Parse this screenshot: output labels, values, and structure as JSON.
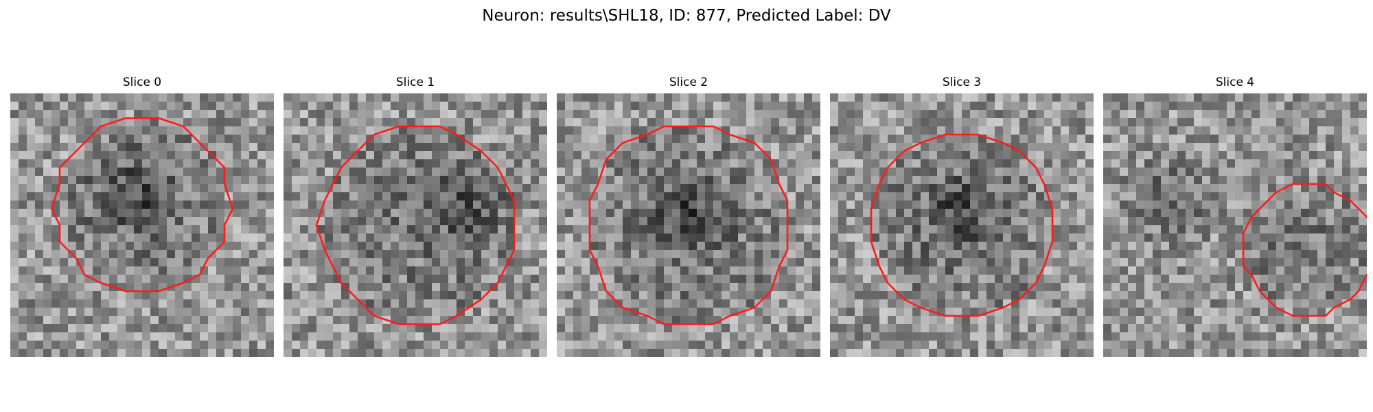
{
  "figure": {
    "title": "Neuron: results\\SHL18, ID: 877, Predicted Label: DV"
  },
  "slices": [
    {
      "label": "Slice 0",
      "contour_center": [
        0.5,
        0.43
      ],
      "contour_radius": 0.33,
      "dark_spot": [
        0.46,
        0.38
      ],
      "background_seed": 11
    },
    {
      "label": "Slice 1",
      "contour_center": [
        0.51,
        0.5
      ],
      "contour_radius": 0.37,
      "dark_spot": [
        0.7,
        0.42
      ],
      "background_seed": 23
    },
    {
      "label": "Slice 2",
      "contour_center": [
        0.5,
        0.5
      ],
      "contour_radius": 0.38,
      "dark_spot": [
        0.5,
        0.45
      ],
      "background_seed": 37
    },
    {
      "label": "Slice 3",
      "contour_center": [
        0.5,
        0.5
      ],
      "contour_radius": 0.34,
      "dark_spot": [
        0.5,
        0.45
      ],
      "background_seed": 41
    },
    {
      "label": "Slice 4",
      "contour_center": [
        0.78,
        0.59
      ],
      "contour_radius": 0.25,
      "dark_spot": [
        0.25,
        0.4
      ],
      "background_seed": 53
    }
  ],
  "colors": {
    "contour": "#ff1a1a"
  },
  "grid_cells": 32
}
